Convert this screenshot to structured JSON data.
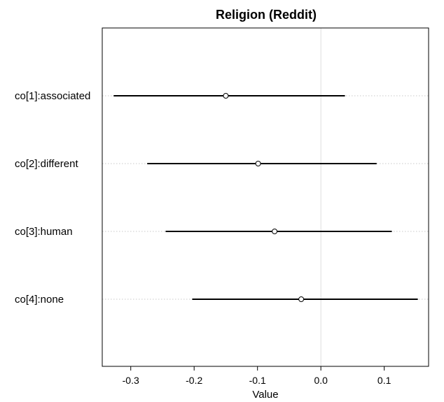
{
  "chart_data": {
    "type": "scatter",
    "title": "Religion (Reddit)",
    "xlabel": "Value",
    "ylabel": "",
    "xlim": [
      -0.345,
      0.17
    ],
    "x_ticks": [
      "-0.3",
      "-0.2",
      "-0.1",
      "0.0",
      "0.1"
    ],
    "reference_line_x": 0.0,
    "categories": [
      "co[1]:associated",
      "co[2]:different",
      "co[3]:human",
      "co[4]:none"
    ],
    "estimates": [
      -0.15,
      -0.099,
      -0.073,
      -0.031
    ],
    "lower": [
      -0.327,
      -0.274,
      -0.245,
      -0.203
    ],
    "upper": [
      0.038,
      0.088,
      0.112,
      0.153
    ],
    "grid": "dotted horizontal guides at each category",
    "legend": "none"
  }
}
